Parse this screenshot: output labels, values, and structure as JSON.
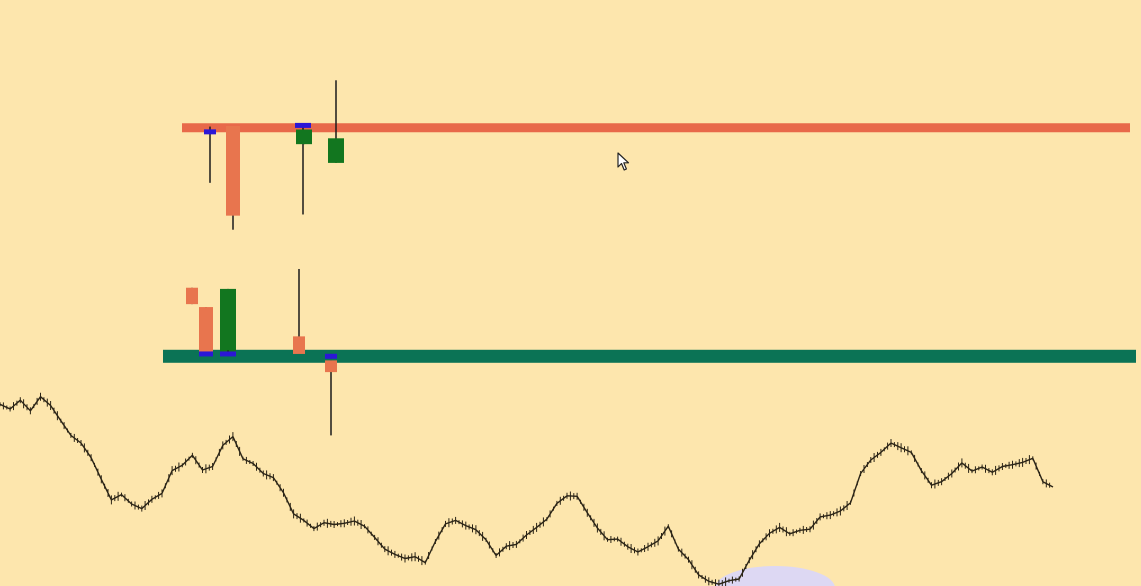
{
  "colors": {
    "background": "#fde6ad",
    "resistance": "#e8694a",
    "support": "#0b7355",
    "bull_candle": "#12761f",
    "bear_candle": "#e8754e",
    "doji_candle": "#2b17d6",
    "wick": "#1a1a1a",
    "price_line": "#2b2416",
    "highlight": "#ddd8f3",
    "cursor": "#ffffff"
  },
  "icons": {
    "cursor": "mouse-pointer-icon"
  },
  "chart_data": {
    "type": "candlestick",
    "title": "",
    "xlabel": "",
    "ylabel": "",
    "axes_visible": false,
    "grid": false,
    "ylim": [
      0,
      100
    ],
    "resistance_level": 78.2,
    "support_level": 39.2,
    "candles": [
      {
        "role": "doji",
        "open": 77.5,
        "close": 77.5,
        "high": 78.4,
        "low": 68.8
      },
      {
        "role": "bullish",
        "open": 73.8,
        "close": 77.6,
        "high": 78.0,
        "low": 73.8
      },
      {
        "role": "bearish",
        "open": 78.5,
        "close": 63.2,
        "high": 78.5,
        "low": 60.8
      },
      {
        "role": "doji",
        "open": 78.6,
        "close": 78.6,
        "high": 79.0,
        "low": 63.4
      },
      {
        "role": "bullish",
        "open": 75.4,
        "close": 77.9,
        "high": 77.9,
        "low": 75.4
      },
      {
        "role": "bullish",
        "open": 72.2,
        "close": 76.4,
        "high": 86.3,
        "low": 72.2
      },
      {
        "role": "bearish",
        "open": 50.9,
        "close": 48.1,
        "high": 50.9,
        "low": 48.1
      },
      {
        "role": "bearish",
        "open": 47.6,
        "close": 39.8,
        "high": 47.6,
        "low": 39.8
      },
      {
        "role": "doji",
        "open": 39.6,
        "close": 39.6,
        "high": 39.8,
        "low": 39.4
      },
      {
        "role": "bullish",
        "open": 39.6,
        "close": 50.7,
        "high": 50.7,
        "low": 39.6
      },
      {
        "role": "doji",
        "open": 39.6,
        "close": 39.6,
        "high": 40.2,
        "low": 39.2
      },
      {
        "role": "bearish",
        "open": 42.6,
        "close": 39.6,
        "high": 54.1,
        "low": 39.6
      },
      {
        "role": "doji",
        "open": 39.2,
        "close": 39.2,
        "high": 39.6,
        "low": 38.8
      },
      {
        "role": "bearish",
        "open": 38.5,
        "close": 36.5,
        "high": 38.5,
        "low": 25.7
      }
    ],
    "price_path": [
      31.0,
      30.2,
      31.7,
      29.9,
      32.3,
      30.8,
      28.2,
      25.7,
      24.4,
      21.9,
      18.2,
      14.7,
      15.6,
      14.0,
      13.2,
      14.8,
      15.8,
      19.7,
      20.6,
      22.3,
      19.8,
      20.4,
      24.0,
      25.5,
      21.7,
      20.9,
      19.2,
      18.5,
      15.9,
      12.3,
      11.2,
      9.8,
      10.8,
      10.5,
      10.7,
      11.1,
      10.2,
      8.3,
      6.3,
      5.4,
      4.7,
      5.0,
      4.0,
      7.6,
      10.6,
      11.2,
      10.3,
      9.6,
      7.9,
      5.2,
      6.8,
      7.1,
      8.7,
      10.0,
      11.4,
      14.1,
      15.4,
      15.3,
      12.5,
      9.9,
      7.9,
      8.0,
      6.7,
      5.8,
      6.7,
      7.7,
      10.2,
      6.3,
      4.5,
      1.9,
      0.8,
      0.3,
      0.9,
      1.2,
      4.4,
      7.2,
      9.0,
      10.0,
      8.9,
      9.5,
      9.7,
      11.8,
      12.1,
      12.8,
      14.2,
      19.2,
      21.5,
      22.8,
      24.4,
      23.6,
      22.8,
      19.7,
      17.2,
      17.8,
      19.2,
      21.0,
      19.6,
      20.3,
      19.4,
      20.4,
      20.7,
      21.1,
      21.8,
      17.8,
      16.9
    ]
  }
}
